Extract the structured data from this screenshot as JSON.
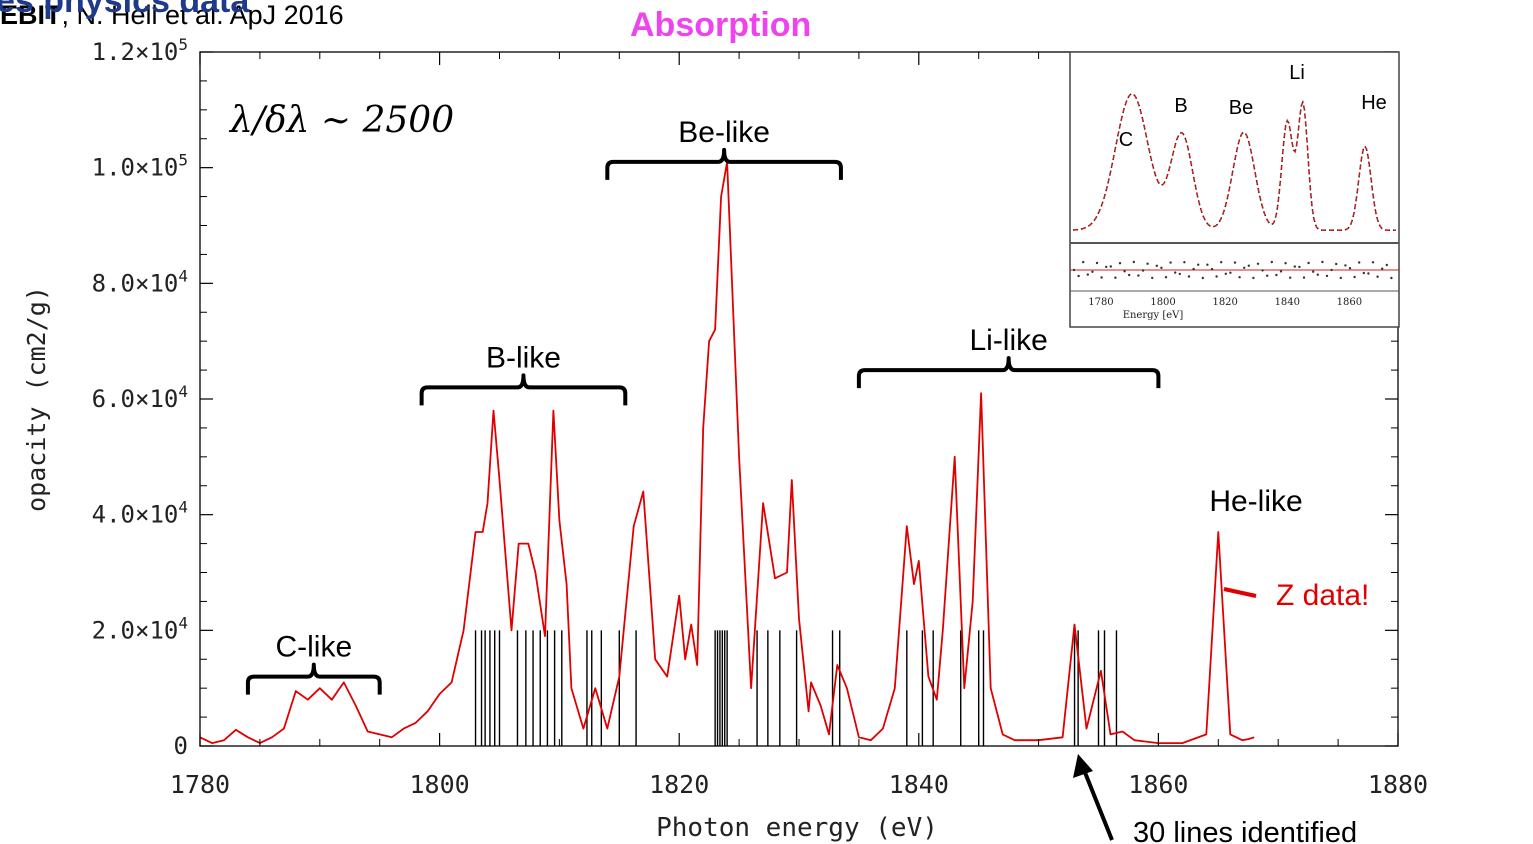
{
  "slide": {
    "heading": "es physics data",
    "absorption_title": "Absorption",
    "citation_bold": "EBIT",
    "citation_rest": ",  N. Hell et al. ApJ 2016"
  },
  "chart_data": {
    "type": "line",
    "xlabel": "Photon energy (eV)",
    "ylabel": "opacity (cm2/g)",
    "xlim": [
      1780,
      1880
    ],
    "ylim": [
      0,
      120000
    ],
    "x_ticks": [
      "1780",
      "1800",
      "1820",
      "1840",
      "1860",
      "1880"
    ],
    "y_ticks": [
      {
        "value": 0,
        "mantissa": "0",
        "exp": ""
      },
      {
        "value": 20000,
        "mantissa": "2.0×10",
        "exp": "4"
      },
      {
        "value": 40000,
        "mantissa": "4.0×10",
        "exp": "4"
      },
      {
        "value": 60000,
        "mantissa": "6.0×10",
        "exp": "4"
      },
      {
        "value": 80000,
        "mantissa": "8.0×10",
        "exp": "4"
      },
      {
        "value": 100000,
        "mantissa": "1.0×10",
        "exp": "5"
      },
      {
        "value": 120000,
        "mantissa": "1.2×10",
        "exp": "5"
      }
    ],
    "resolution_label": "λ/δλ ∼ 2500",
    "series": [
      {
        "color": "#e00000",
        "points": [
          [
            1780,
            1500
          ],
          [
            1781,
            500
          ],
          [
            1782,
            1000
          ],
          [
            1783,
            2800
          ],
          [
            1784,
            1500
          ],
          [
            1785,
            500
          ],
          [
            1786,
            1500
          ],
          [
            1787,
            3000
          ],
          [
            1788,
            9500
          ],
          [
            1789,
            8000
          ],
          [
            1790,
            10000
          ],
          [
            1791,
            8000
          ],
          [
            1792,
            11000
          ],
          [
            1793,
            7000
          ],
          [
            1794,
            2500
          ],
          [
            1795,
            2000
          ],
          [
            1796,
            1500
          ],
          [
            1797,
            3000
          ],
          [
            1798,
            4000
          ],
          [
            1799,
            6000
          ],
          [
            1800,
            9000
          ],
          [
            1801,
            11000
          ],
          [
            1802,
            20000
          ],
          [
            1803,
            37000
          ],
          [
            1803.6,
            37000
          ],
          [
            1804,
            42000
          ],
          [
            1804.5,
            58000
          ],
          [
            1805,
            46000
          ],
          [
            1806,
            20000
          ],
          [
            1806.6,
            35000
          ],
          [
            1807.4,
            35000
          ],
          [
            1808,
            30000
          ],
          [
            1808.8,
            19000
          ],
          [
            1809.5,
            58000
          ],
          [
            1810,
            39000
          ],
          [
            1810.6,
            28000
          ],
          [
            1811,
            10000
          ],
          [
            1812,
            3000
          ],
          [
            1813,
            10000
          ],
          [
            1814,
            3000
          ],
          [
            1815,
            12000
          ],
          [
            1816.2,
            38000
          ],
          [
            1817,
            44000
          ],
          [
            1818,
            15000
          ],
          [
            1819,
            12000
          ],
          [
            1820,
            26000
          ],
          [
            1820.5,
            15000
          ],
          [
            1821,
            21000
          ],
          [
            1821.5,
            14000
          ],
          [
            1822,
            55000
          ],
          [
            1822.5,
            70000
          ],
          [
            1823,
            72000
          ],
          [
            1823.5,
            95000
          ],
          [
            1824,
            101000
          ],
          [
            1825,
            50000
          ],
          [
            1826,
            10000
          ],
          [
            1827,
            42000
          ],
          [
            1828,
            29000
          ],
          [
            1829,
            30000
          ],
          [
            1829.4,
            46000
          ],
          [
            1830,
            22000
          ],
          [
            1830.8,
            6000
          ],
          [
            1831,
            11000
          ],
          [
            1831.8,
            7000
          ],
          [
            1832.5,
            2000
          ],
          [
            1833.2,
            14000
          ],
          [
            1834,
            10000
          ],
          [
            1835,
            1500
          ],
          [
            1836,
            1000
          ],
          [
            1837,
            3000
          ],
          [
            1838,
            10000
          ],
          [
            1839,
            38000
          ],
          [
            1839.6,
            28000
          ],
          [
            1840,
            32000
          ],
          [
            1840.8,
            12000
          ],
          [
            1841.5,
            8000
          ],
          [
            1842,
            20000
          ],
          [
            1843,
            50000
          ],
          [
            1843.8,
            10000
          ],
          [
            1844.5,
            25000
          ],
          [
            1845.2,
            61000
          ],
          [
            1846,
            10000
          ],
          [
            1847,
            2000
          ],
          [
            1848,
            1000
          ],
          [
            1850,
            1000
          ],
          [
            1852,
            1500
          ],
          [
            1853,
            21000
          ],
          [
            1854,
            3000
          ],
          [
            1855.2,
            13000
          ],
          [
            1856,
            2000
          ],
          [
            1857,
            2500
          ],
          [
            1858,
            1000
          ],
          [
            1860,
            500
          ],
          [
            1862,
            500
          ],
          [
            1864,
            2000
          ],
          [
            1865,
            37000
          ],
          [
            1866,
            2000
          ],
          [
            1867,
            1000
          ],
          [
            1867.5,
            1200
          ],
          [
            1868,
            1500
          ]
        ]
      }
    ],
    "line_markers": {
      "top": 20000,
      "x": [
        1803,
        1803.5,
        1803.8,
        1804.2,
        1804.6,
        1805,
        1806.5,
        1807.2,
        1807.8,
        1808.4,
        1809,
        1809.6,
        1810.2,
        1812.3,
        1812.7,
        1813.5,
        1815,
        1816.4,
        1823,
        1823.2,
        1823.4,
        1823.6,
        1823.8,
        1824,
        1826.5,
        1827.4,
        1828.4,
        1829.8,
        1832.8,
        1833.4,
        1839,
        1840.3,
        1841.2,
        1843.5,
        1845,
        1845.4,
        1853,
        1853.3,
        1855,
        1855.5,
        1856.5
      ]
    },
    "brackets": [
      {
        "label": "C-like",
        "x1": 1784,
        "x2": 1795,
        "y": 12000
      },
      {
        "label": "B-like",
        "x1": 1798.5,
        "x2": 1815.5,
        "y": 62000
      },
      {
        "label": "Be-like",
        "x1": 1814,
        "x2": 1833.5,
        "y": 101000
      },
      {
        "label": "Li-like",
        "x1": 1835,
        "x2": 1860,
        "y": 65000
      }
    ],
    "annotations": {
      "he_like": "He-like",
      "z_data": "Z data!",
      "lines_identified": "30 lines identified"
    },
    "inset": {
      "xlabel": "Energy  [eV]",
      "x_ticks": [
        "1780",
        "1800",
        "1820",
        "1840",
        "1860"
      ],
      "peak_labels": [
        "C",
        "B",
        "Be",
        "Li",
        "He"
      ]
    }
  }
}
